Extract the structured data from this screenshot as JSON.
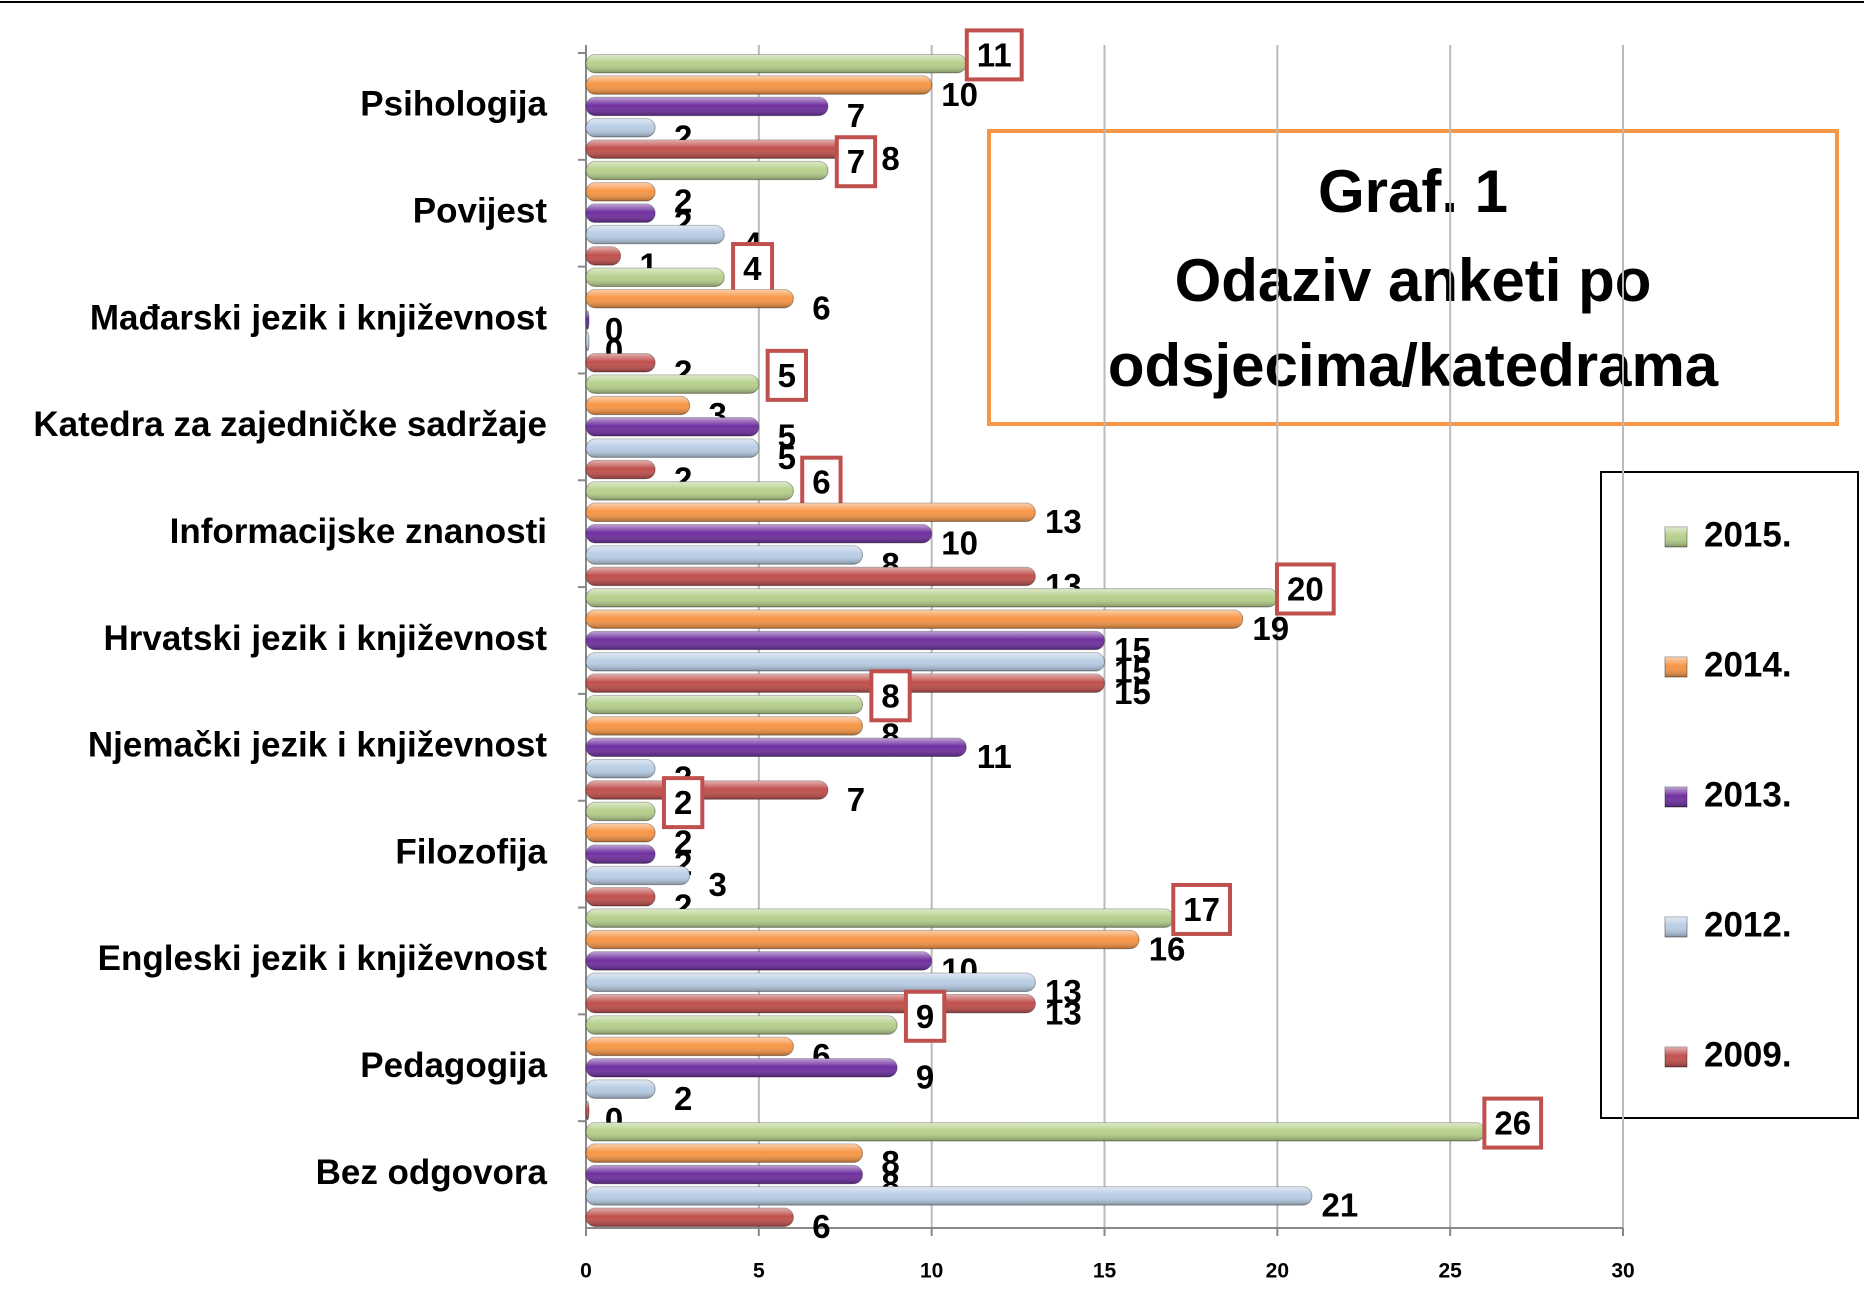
{
  "chart_data": {
    "type": "bar",
    "orientation": "horizontal",
    "title_lines": [
      "Graf. 1",
      "Odaziv anketi po",
      "odsjecima/katedrama"
    ],
    "categories": [
      "Psihologija",
      "Povijest",
      "Mađarski jezik i književnost",
      "Katedra za zajedničke sadržaje",
      "Informacijske znanosti",
      "Hrvatski jezik i književnost",
      "Njemački jezik i književnost",
      "Filozofija",
      "Engleski jezik i književnost",
      "Pedagogija",
      "Bez odgovora"
    ],
    "series": [
      {
        "name": "2015.",
        "color": "#b6d08c",
        "boxed": true,
        "values": [
          11,
          7,
          4,
          5,
          6,
          20,
          8,
          2,
          17,
          9,
          26
        ]
      },
      {
        "name": "2014.",
        "color": "#f79646",
        "values": [
          10,
          2,
          6,
          3,
          13,
          19,
          8,
          2,
          16,
          6,
          8
        ]
      },
      {
        "name": "2013.",
        "color": "#7030a0",
        "values": [
          7,
          2,
          0,
          5,
          10,
          15,
          11,
          2,
          10,
          9,
          8
        ]
      },
      {
        "name": "2012.",
        "color": "#b9cde5",
        "values": [
          2,
          4,
          0,
          5,
          8,
          15,
          2,
          3,
          13,
          2,
          21
        ]
      },
      {
        "name": "2009.",
        "color": "#c0504d",
        "values": [
          8,
          1,
          2,
          2,
          13,
          15,
          7,
          2,
          13,
          0,
          6
        ]
      }
    ],
    "xlim": [
      0,
      30
    ],
    "xticks": [
      0,
      5,
      10,
      15,
      20,
      25,
      30
    ],
    "grid": true
  }
}
